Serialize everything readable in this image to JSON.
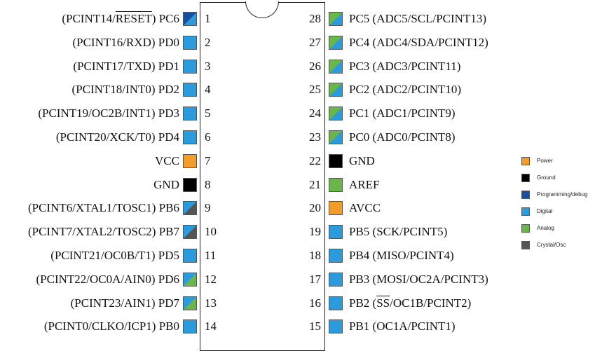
{
  "legend": [
    {
      "key": "power",
      "label": "Power",
      "color": "#f39c2a"
    },
    {
      "key": "ground",
      "label": "Ground",
      "color": "#000000"
    },
    {
      "key": "programming",
      "label": "Programming/debug",
      "color": "#1a4f9e"
    },
    {
      "key": "digital",
      "label": "Digital",
      "color": "#2b9bdb"
    },
    {
      "key": "analog",
      "label": "Analog",
      "color": "#6ab64a"
    },
    {
      "key": "crystal",
      "label": "Crystal/Osc",
      "color": "#555555"
    }
  ],
  "left_pins": [
    {
      "num": "1",
      "pre": "(PCINT14/",
      "over": "RESET",
      "post": ") PC6",
      "types": [
        "programming",
        "digital"
      ]
    },
    {
      "num": "2",
      "pre": "(PCINT16/RXD) PD0",
      "over": "",
      "post": "",
      "types": [
        "digital"
      ]
    },
    {
      "num": "3",
      "pre": "(PCINT17/TXD) PD1",
      "over": "",
      "post": "",
      "types": [
        "digital"
      ]
    },
    {
      "num": "4",
      "pre": "(PCINT18/INT0) PD2",
      "over": "",
      "post": "",
      "types": [
        "digital"
      ]
    },
    {
      "num": "5",
      "pre": "(PCINT19/OC2B/INT1) PD3",
      "over": "",
      "post": "",
      "types": [
        "digital"
      ]
    },
    {
      "num": "6",
      "pre": "(PCINT20/XCK/T0) PD4",
      "over": "",
      "post": "",
      "types": [
        "digital"
      ]
    },
    {
      "num": "7",
      "pre": "VCC",
      "over": "",
      "post": "",
      "types": [
        "power"
      ]
    },
    {
      "num": "8",
      "pre": "GND",
      "over": "",
      "post": "",
      "types": [
        "ground"
      ]
    },
    {
      "num": "9",
      "pre": "(PCINT6/XTAL1/TOSC1) PB6",
      "over": "",
      "post": "",
      "types": [
        "digital",
        "crystal"
      ]
    },
    {
      "num": "10",
      "pre": "(PCINT7/XTAL2/TOSC2) PB7",
      "over": "",
      "post": "",
      "types": [
        "digital",
        "crystal"
      ]
    },
    {
      "num": "11",
      "pre": "(PCINT21/OC0B/T1) PD5",
      "over": "",
      "post": "",
      "types": [
        "digital"
      ]
    },
    {
      "num": "12",
      "pre": "(PCINT22/OC0A/AIN0) PD6",
      "over": "",
      "post": "",
      "types": [
        "digital",
        "analog"
      ]
    },
    {
      "num": "13",
      "pre": "(PCINT23/AIN1) PD7",
      "over": "",
      "post": "",
      "types": [
        "digital",
        "analog"
      ]
    },
    {
      "num": "14",
      "pre": "(PCINT0/CLKO/ICP1) PB0",
      "over": "",
      "post": "",
      "types": [
        "digital"
      ]
    }
  ],
  "right_pins": [
    {
      "num": "28",
      "pre": "PC5 (ADC5/SCL/PCINT13)",
      "over": "",
      "post": "",
      "types": [
        "analog",
        "digital"
      ]
    },
    {
      "num": "27",
      "pre": "PC4 (ADC4/SDA/PCINT12)",
      "over": "",
      "post": "",
      "types": [
        "analog",
        "digital"
      ]
    },
    {
      "num": "26",
      "pre": "PC3 (ADC3/PCINT11)",
      "over": "",
      "post": "",
      "types": [
        "analog",
        "digital"
      ]
    },
    {
      "num": "25",
      "pre": "PC2 (ADC2/PCINT10)",
      "over": "",
      "post": "",
      "types": [
        "analog",
        "digital"
      ]
    },
    {
      "num": "24",
      "pre": "PC1 (ADC1/PCINT9)",
      "over": "",
      "post": "",
      "types": [
        "analog",
        "digital"
      ]
    },
    {
      "num": "23",
      "pre": "PC0 (ADC0/PCINT8)",
      "over": "",
      "post": "",
      "types": [
        "analog",
        "digital"
      ]
    },
    {
      "num": "22",
      "pre": "GND",
      "over": "",
      "post": "",
      "types": [
        "ground"
      ]
    },
    {
      "num": "21",
      "pre": "AREF",
      "over": "",
      "post": "",
      "types": [
        "analog"
      ]
    },
    {
      "num": "20",
      "pre": "AVCC",
      "over": "",
      "post": "",
      "types": [
        "power"
      ]
    },
    {
      "num": "19",
      "pre": "PB5 (SCK/PCINT5)",
      "over": "",
      "post": "",
      "types": [
        "digital"
      ]
    },
    {
      "num": "18",
      "pre": "PB4 (MISO/PCINT4)",
      "over": "",
      "post": "",
      "types": [
        "digital"
      ]
    },
    {
      "num": "17",
      "pre": "PB3 (MOSI/OC2A/PCINT3)",
      "over": "",
      "post": "",
      "types": [
        "digital"
      ]
    },
    {
      "num": "16",
      "pre": "PB2 (",
      "over": "SS",
      "post": "/OC1B/PCINT2)",
      "types": [
        "digital"
      ]
    },
    {
      "num": "15",
      "pre": "PB1 (OC1A/PCINT1)",
      "over": "",
      "post": "",
      "types": [
        "digital"
      ]
    }
  ]
}
